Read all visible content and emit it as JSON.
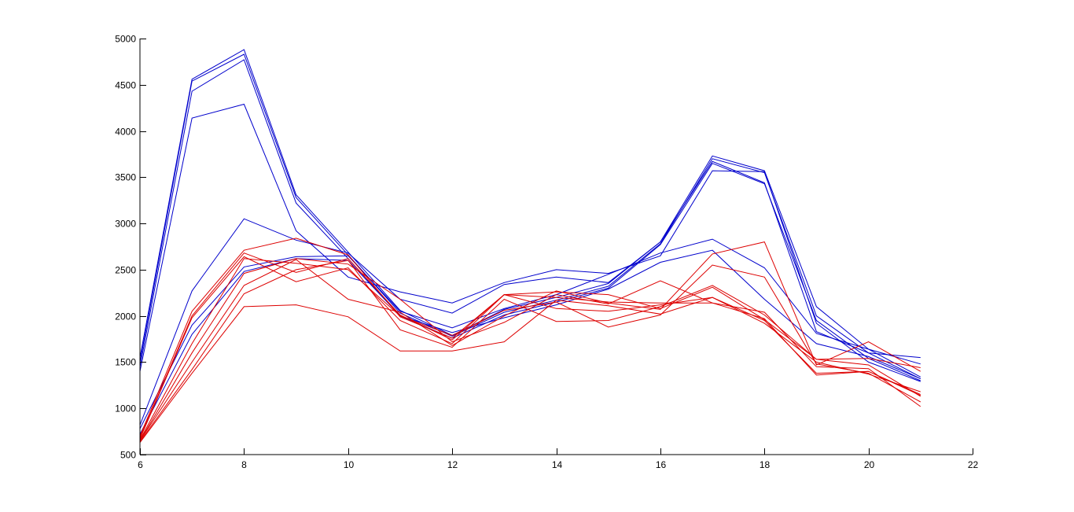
{
  "chart_data": {
    "type": "line",
    "title": "",
    "xlabel": "",
    "ylabel": "",
    "xlim": [
      6,
      22
    ],
    "ylim": [
      500,
      5000
    ],
    "xticks": [
      6,
      8,
      10,
      12,
      14,
      16,
      18,
      20,
      22
    ],
    "yticks": [
      500,
      1000,
      1500,
      2000,
      2500,
      3000,
      3500,
      4000,
      4500,
      5000
    ],
    "xtick_labels": [
      "6",
      "8",
      "10",
      "12",
      "14",
      "16",
      "18",
      "20",
      "22"
    ],
    "ytick_labels": [
      "500",
      "1000",
      "1500",
      "2000",
      "2500",
      "3000",
      "3500",
      "4000",
      "4500",
      "5000"
    ],
    "grid": false,
    "x": [
      6,
      7,
      8,
      9,
      10,
      11,
      12,
      13,
      14,
      15,
      16,
      17,
      18,
      19,
      20,
      21
    ],
    "colors": {
      "blue": "#0000cc",
      "red": "#dd0000"
    },
    "series": [
      {
        "color": "blue",
        "values": [
          1550,
          4560,
          4880,
          3310,
          2690,
          2060,
          1790,
          2070,
          2200,
          2350,
          2800,
          3730,
          3570,
          2100,
          1640,
          1340
        ]
      },
      {
        "color": "blue",
        "values": [
          1500,
          4540,
          4830,
          3280,
          2660,
          2030,
          1780,
          2040,
          2170,
          2320,
          2780,
          3700,
          3550,
          2000,
          1600,
          1320
        ]
      },
      {
        "color": "blue",
        "values": [
          1450,
          4430,
          4770,
          3220,
          2620,
          2000,
          1760,
          2010,
          2150,
          2300,
          2770,
          3650,
          3430,
          1950,
          1540,
          1300
        ]
      },
      {
        "color": "blue",
        "values": [
          1400,
          4140,
          4290,
          2920,
          2420,
          2260,
          2140,
          2360,
          2500,
          2460,
          2650,
          3570,
          3560,
          1920,
          1500,
          1290
        ]
      },
      {
        "color": "blue",
        "values": [
          820,
          2270,
          3050,
          2820,
          2680,
          2180,
          2030,
          2340,
          2420,
          2360,
          2800,
          3670,
          3440,
          1830,
          1600,
          1550
        ]
      },
      {
        "color": "blue",
        "values": [
          780,
          1900,
          2530,
          2640,
          2650,
          2050,
          1870,
          2080,
          2230,
          2450,
          2680,
          2830,
          2520,
          1810,
          1640,
          1480
        ]
      },
      {
        "color": "blue",
        "values": [
          720,
          1800,
          2480,
          2620,
          2600,
          2000,
          1820,
          1980,
          2120,
          2290,
          2580,
          2710,
          2180,
          1700,
          1560,
          1320
        ]
      },
      {
        "color": "red",
        "values": [
          700,
          2050,
          2710,
          2840,
          2660,
          1990,
          1760,
          2230,
          2260,
          2230,
          2080,
          2310,
          1960,
          1530,
          1470,
          1130
        ]
      },
      {
        "color": "red",
        "values": [
          680,
          2000,
          2680,
          2470,
          2620,
          2010,
          1740,
          2230,
          2080,
          2050,
          2120,
          2200,
          1950,
          1380,
          1400,
          1150
        ]
      },
      {
        "color": "red",
        "values": [
          670,
          1980,
          2640,
          2370,
          2520,
          1950,
          1700,
          2230,
          2200,
          2150,
          2140,
          2140,
          1970,
          1360,
          1400,
          1140
        ]
      },
      {
        "color": "red",
        "values": [
          660,
          1700,
          2620,
          2570,
          2500,
          2000,
          1790,
          2060,
          2150,
          1880,
          2010,
          2550,
          2420,
          1480,
          1380,
          1070
        ]
      },
      {
        "color": "red",
        "values": [
          650,
          1600,
          2460,
          2620,
          2560,
          2180,
          1720,
          1930,
          2230,
          2130,
          2380,
          2140,
          2040,
          1450,
          1430,
          1020
        ]
      },
      {
        "color": "red",
        "values": [
          650,
          1500,
          2330,
          2610,
          2180,
          2040,
          1680,
          2000,
          2270,
          2140,
          2070,
          2670,
          2800,
          1470,
          1720,
          1400
        ]
      },
      {
        "color": "red",
        "values": [
          640,
          1420,
          2240,
          2500,
          2600,
          1850,
          1660,
          2180,
          1940,
          1950,
          2100,
          2330,
          2010,
          1530,
          1540,
          1440
        ]
      },
      {
        "color": "red",
        "values": [
          630,
          1380,
          2100,
          2120,
          1990,
          1620,
          1620,
          1720,
          2170,
          2110,
          2020,
          2200,
          1920,
          1500,
          1370,
          1180
        ]
      }
    ]
  }
}
